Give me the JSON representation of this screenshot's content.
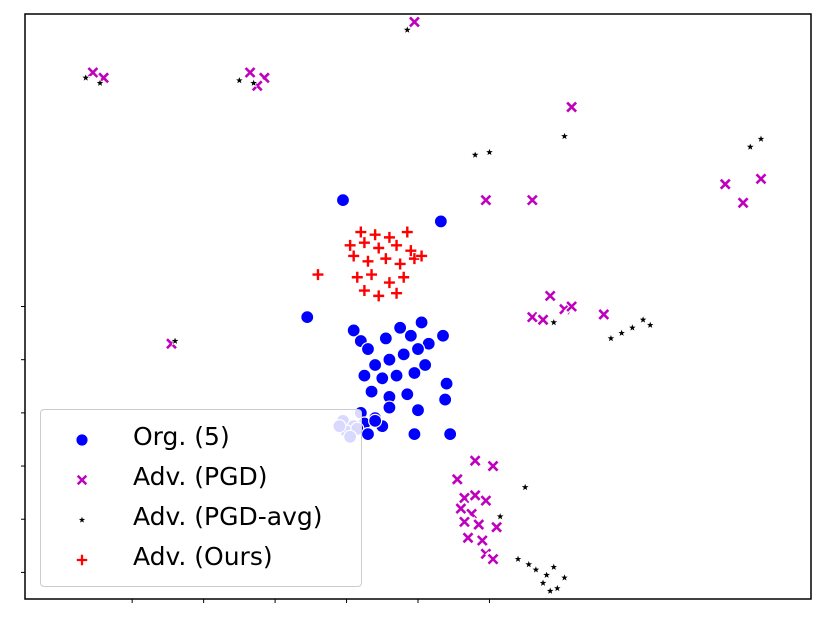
{
  "chart_data": {
    "type": "scatter",
    "title": "",
    "xlabel": "",
    "ylabel": "",
    "xlim": [
      -0.5,
      10.5
    ],
    "ylim": [
      -0.5,
      10.5
    ],
    "grid": false,
    "legend_placement": "lower-left",
    "ticks_labeled": false,
    "x_ticks": [
      1,
      2,
      3,
      4,
      5,
      6
    ],
    "y_ticks": [
      0,
      1,
      2,
      3,
      4,
      5
    ],
    "series": [
      {
        "name": "Org. (5)",
        "marker": "circle",
        "color": "#0000ff",
        "points": [
          [
            3.95,
            7.0
          ],
          [
            5.32,
            6.6
          ],
          [
            3.45,
            4.8
          ],
          [
            4.1,
            4.55
          ],
          [
            5.05,
            4.7
          ],
          [
            4.2,
            4.35
          ],
          [
            4.3,
            4.2
          ],
          [
            4.55,
            4.4
          ],
          [
            4.75,
            4.6
          ],
          [
            4.9,
            4.45
          ],
          [
            5.15,
            4.3
          ],
          [
            5.35,
            4.45
          ],
          [
            4.4,
            3.9
          ],
          [
            4.6,
            4.0
          ],
          [
            4.8,
            4.1
          ],
          [
            5.0,
            4.2
          ],
          [
            5.1,
            3.9
          ],
          [
            4.25,
            3.7
          ],
          [
            4.5,
            3.65
          ],
          [
            4.7,
            3.7
          ],
          [
            4.95,
            3.75
          ],
          [
            4.35,
            3.4
          ],
          [
            4.6,
            3.3
          ],
          [
            4.85,
            3.35
          ],
          [
            5.4,
            3.55
          ],
          [
            5.38,
            3.25
          ],
          [
            4.2,
            3.0
          ],
          [
            4.4,
            2.9
          ],
          [
            4.6,
            3.1
          ],
          [
            5.0,
            3.05
          ],
          [
            3.95,
            2.85
          ],
          [
            4.1,
            2.75
          ],
          [
            4.25,
            2.8
          ],
          [
            4.0,
            2.65
          ],
          [
            4.15,
            2.7
          ],
          [
            4.3,
            2.6
          ],
          [
            4.5,
            2.75
          ],
          [
            3.9,
            2.75
          ],
          [
            4.05,
            2.55
          ],
          [
            4.95,
            2.6
          ],
          [
            5.45,
            2.6
          ],
          [
            4.4,
            2.85
          ]
        ]
      },
      {
        "name": "Adv. (PGD)",
        "marker": "x",
        "color": "#bf00bf",
        "points": [
          [
            0.45,
            9.4
          ],
          [
            0.6,
            9.3
          ],
          [
            2.65,
            9.4
          ],
          [
            2.85,
            9.3
          ],
          [
            2.75,
            9.15
          ],
          [
            4.95,
            10.35
          ],
          [
            5.95,
            7.0
          ],
          [
            6.6,
            7.0
          ],
          [
            7.15,
            8.75
          ],
          [
            9.3,
            7.3
          ],
          [
            9.55,
            6.95
          ],
          [
            9.8,
            7.4
          ],
          [
            6.85,
            5.2
          ],
          [
            6.6,
            4.8
          ],
          [
            6.75,
            4.75
          ],
          [
            7.05,
            4.95
          ],
          [
            7.15,
            5.0
          ],
          [
            7.6,
            4.85
          ],
          [
            5.8,
            2.1
          ],
          [
            6.05,
            2.0
          ],
          [
            5.55,
            1.75
          ],
          [
            5.65,
            1.4
          ],
          [
            5.8,
            1.45
          ],
          [
            5.95,
            1.35
          ],
          [
            5.6,
            1.2
          ],
          [
            5.75,
            1.1
          ],
          [
            5.85,
            0.9
          ],
          [
            5.7,
            0.65
          ],
          [
            5.9,
            0.6
          ],
          [
            5.95,
            0.35
          ],
          [
            6.05,
            0.25
          ],
          [
            6.1,
            0.85
          ],
          [
            5.65,
            0.95
          ],
          [
            1.55,
            4.3
          ]
        ]
      },
      {
        "name": "Adv. (PGD-avg)",
        "marker": "star",
        "color": "#000000",
        "points": [
          [
            0.35,
            9.3
          ],
          [
            0.55,
            9.2
          ],
          [
            2.5,
            9.25
          ],
          [
            2.7,
            9.2
          ],
          [
            4.85,
            10.2
          ],
          [
            5.8,
            7.85
          ],
          [
            6.0,
            7.9
          ],
          [
            7.05,
            8.2
          ],
          [
            9.65,
            8.0
          ],
          [
            9.8,
            8.15
          ],
          [
            1.6,
            4.35
          ],
          [
            6.9,
            4.7
          ],
          [
            7.7,
            4.4
          ],
          [
            7.85,
            4.5
          ],
          [
            8.0,
            4.6
          ],
          [
            8.15,
            4.75
          ],
          [
            8.25,
            4.65
          ],
          [
            6.5,
            1.6
          ],
          [
            6.15,
            1.05
          ],
          [
            6.4,
            0.25
          ],
          [
            6.55,
            0.15
          ],
          [
            6.65,
            0.05
          ],
          [
            6.8,
            -0.05
          ],
          [
            6.9,
            0.1
          ],
          [
            6.75,
            -0.2
          ],
          [
            6.95,
            -0.3
          ],
          [
            7.05,
            -0.1
          ],
          [
            6.85,
            -0.35
          ]
        ]
      },
      {
        "name": "Adv. (Ours)",
        "marker": "plus",
        "color": "#ff0000",
        "points": [
          [
            4.2,
            6.4
          ],
          [
            4.4,
            6.35
          ],
          [
            4.6,
            6.3
          ],
          [
            4.85,
            6.4
          ],
          [
            4.05,
            6.15
          ],
          [
            4.25,
            6.2
          ],
          [
            4.45,
            6.1
          ],
          [
            4.7,
            6.15
          ],
          [
            4.9,
            6.05
          ],
          [
            4.1,
            5.95
          ],
          [
            4.3,
            5.85
          ],
          [
            4.55,
            5.9
          ],
          [
            4.75,
            5.8
          ],
          [
            4.95,
            5.9
          ],
          [
            3.6,
            5.6
          ],
          [
            4.15,
            5.55
          ],
          [
            4.35,
            5.6
          ],
          [
            4.6,
            5.45
          ],
          [
            4.8,
            5.55
          ],
          [
            4.25,
            5.3
          ],
          [
            4.45,
            5.2
          ],
          [
            4.7,
            5.25
          ],
          [
            5.05,
            5.95
          ]
        ]
      }
    ]
  }
}
